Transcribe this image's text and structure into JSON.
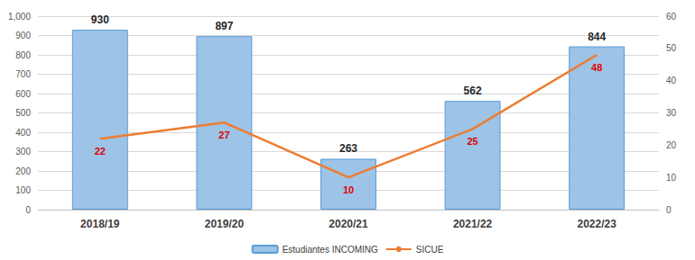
{
  "chart_data": {
    "type": "bar",
    "categories": [
      "2018/19",
      "2019/20",
      "2020/21",
      "2021/22",
      "2022/23"
    ],
    "series": [
      {
        "name": "Estudiantes INCOMING",
        "type": "bar",
        "color": "#9dc3e6",
        "values": [
          930,
          897,
          263,
          562,
          844
        ]
      },
      {
        "name": "SICUE",
        "type": "line",
        "color": "#ed7d31",
        "axis": "y2",
        "marker": "none",
        "values": [
          22,
          27,
          10,
          25,
          48
        ]
      }
    ],
    "ylim": [
      0,
      1000
    ],
    "yticks": [
      0,
      100,
      200,
      300,
      400,
      500,
      600,
      700,
      800,
      900,
      1000
    ],
    "y2lim": [
      0,
      60
    ],
    "y2ticks": [
      0,
      10,
      20,
      30,
      40,
      50,
      60
    ],
    "grid": true,
    "legend": "bottom",
    "data_labels": true
  }
}
